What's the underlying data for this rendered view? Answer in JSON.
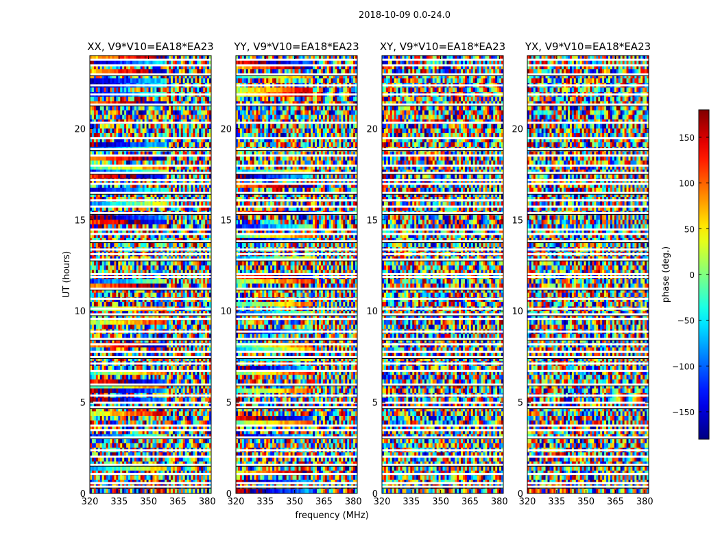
{
  "chart_data": {
    "type": "heatmap",
    "suptitle": "2018-10-09 0.0-24.0",
    "xlabel": "frequency (MHz)",
    "ylabel": "UT (hours)",
    "xlim": [
      320,
      382
    ],
    "ylim": [
      0,
      24
    ],
    "xticks": [
      320,
      335,
      350,
      365,
      380
    ],
    "yticks": [
      0,
      5,
      10,
      15,
      20
    ],
    "panels": [
      {
        "title": "XX, V9*V10=EA18*EA23"
      },
      {
        "title": "YY, V9*V10=EA18*EA23"
      },
      {
        "title": "XY, V9*V10=EA18*EA23"
      },
      {
        "title": "YX, V9*V10=EA18*EA23"
      }
    ],
    "colorbar": {
      "label": "phase (deg.)",
      "range": [
        -180,
        180
      ],
      "ticks": [
        -150,
        -100,
        -50,
        0,
        50,
        100,
        150
      ],
      "tick_labels": [
        "−150",
        "−100",
        "−50",
        "0",
        "50",
        "100",
        "150"
      ],
      "cmap": "jet"
    },
    "gap_rows_ut": [
      0.35,
      0.55,
      1.05,
      1.55,
      2.0,
      2.35,
      3.05,
      3.45,
      3.7,
      4.7,
      4.95,
      5.35,
      5.95,
      6.7,
      7.1,
      7.45,
      7.75,
      8.15,
      8.45,
      8.85,
      9.55,
      9.8,
      10.1,
      10.65,
      11.2,
      11.85,
      12.0,
      12.8,
      13.1,
      13.35,
      13.8,
      14.2,
      14.45,
      15.35,
      15.7,
      16.05,
      16.45,
      16.95,
      17.15,
      17.55,
      17.95,
      18.5,
      18.85,
      19.45,
      20.3,
      21.3,
      21.85,
      22.35,
      22.95,
      23.45,
      23.75
    ]
  }
}
